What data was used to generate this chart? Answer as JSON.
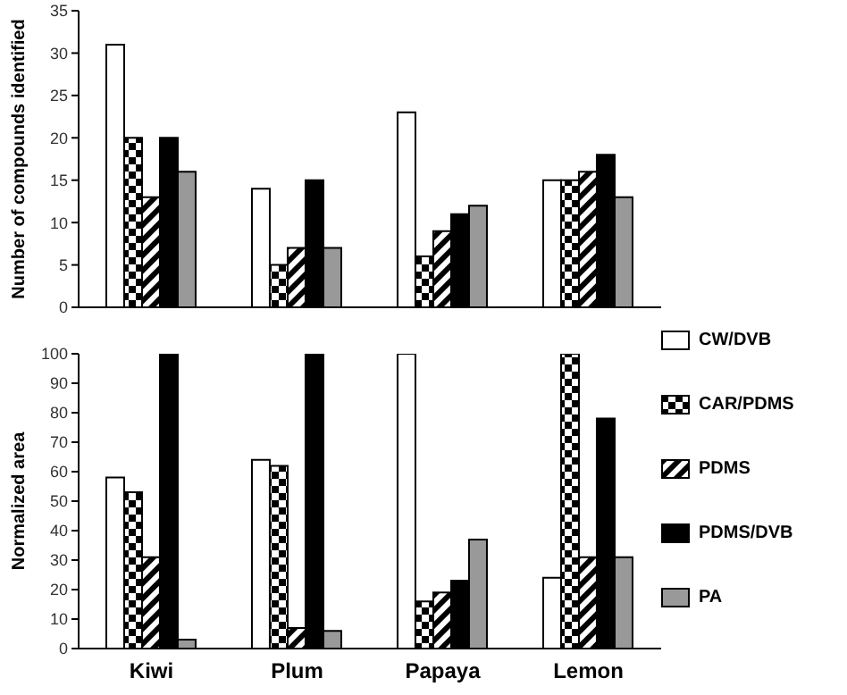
{
  "chart_data": [
    {
      "type": "bar",
      "ylabel": "Number of compounds identified",
      "categories": [
        null,
        null,
        null,
        null
      ],
      "ylim": [
        0,
        35
      ],
      "yticks": [
        0,
        5,
        10,
        15,
        20,
        25,
        30,
        35
      ],
      "tick_labels": "y",
      "series": [
        {
          "color": "#ffffff",
          "values": [
            31,
            14,
            23,
            15
          ]
        },
        {
          "color": "#000000",
          "values": [
            20,
            5,
            6,
            15
          ]
        },
        {
          "color": "#000000",
          "values": [
            13,
            7,
            9,
            16
          ]
        },
        {
          "color": "#000000",
          "values": [
            20,
            15,
            11,
            18
          ]
        },
        {
          "color": "#999999",
          "values": [
            16,
            7,
            12,
            13
          ]
        }
      ]
    },
    {
      "type": "bar",
      "ylabel": "Normalized  area",
      "categories": [
        "Kiwi",
        "Plum",
        "Papaya",
        "Lemon"
      ],
      "ylim": [
        0,
        100
      ],
      "yticks": [
        0,
        10,
        20,
        30,
        40,
        50,
        60,
        70,
        80,
        90,
        100
      ],
      "legend": "right",
      "series": [
        {
          "name": "CW/DVB",
          "color": "#ffffff",
          "values": [
            58,
            64,
            100,
            24
          ]
        },
        {
          "name": "CAR/PDMS",
          "color": "#000000",
          "values": [
            53,
            62,
            16,
            100
          ]
        },
        {
          "name": "PDMS",
          "color": "#000000",
          "values": [
            31,
            7,
            19,
            31
          ]
        },
        {
          "name": "PDMS/DVB",
          "color": "#000000",
          "values": [
            100,
            100,
            23,
            78
          ]
        },
        {
          "name": "PA",
          "color": "#999999",
          "values": [
            3,
            6,
            37,
            31
          ]
        }
      ]
    }
  ]
}
